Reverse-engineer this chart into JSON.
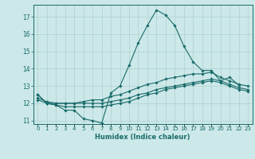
{
  "title": "",
  "xlabel": "Humidex (Indice chaleur)",
  "bg_color": "#cce8e8",
  "grid_color": "#b0d0d0",
  "line_color": "#1a6b6b",
  "x_values": [
    0,
    1,
    2,
    3,
    4,
    5,
    6,
    7,
    8,
    9,
    10,
    11,
    12,
    13,
    14,
    15,
    16,
    17,
    18,
    19,
    20,
    21,
    22,
    23
  ],
  "ylim": [
    10.8,
    17.7
  ],
  "xlim": [
    -0.5,
    23.5
  ],
  "yticks": [
    11,
    12,
    13,
    14,
    15,
    16,
    17
  ],
  "series1": [
    12.5,
    12.0,
    11.9,
    11.6,
    11.6,
    11.1,
    11.0,
    10.85,
    12.6,
    13.0,
    14.2,
    15.5,
    16.5,
    17.4,
    17.1,
    16.5,
    15.3,
    14.4,
    13.9,
    13.9,
    13.3,
    13.5,
    13.05,
    null
  ],
  "series2": [
    12.5,
    12.0,
    12.0,
    12.0,
    12.0,
    12.1,
    12.2,
    12.2,
    12.4,
    12.5,
    12.7,
    12.9,
    13.1,
    13.2,
    13.4,
    13.5,
    13.6,
    13.7,
    13.7,
    13.8,
    13.5,
    13.3,
    13.1,
    13.0
  ],
  "series3": [
    12.3,
    12.1,
    12.0,
    12.0,
    12.0,
    12.0,
    12.0,
    12.0,
    12.1,
    12.2,
    12.3,
    12.5,
    12.6,
    12.8,
    12.9,
    13.0,
    13.1,
    13.2,
    13.3,
    13.4,
    13.3,
    13.1,
    12.9,
    12.8
  ],
  "series4": [
    12.2,
    12.0,
    11.9,
    11.8,
    11.8,
    11.8,
    11.8,
    11.8,
    11.9,
    12.0,
    12.1,
    12.3,
    12.5,
    12.6,
    12.8,
    12.9,
    13.0,
    13.1,
    13.2,
    13.3,
    13.2,
    13.0,
    12.8,
    12.7
  ],
  "marker_size": 1.8,
  "line_width": 0.8,
  "tick_label_size": 5.0,
  "ytick_label_size": 5.5,
  "xlabel_size": 6.0
}
